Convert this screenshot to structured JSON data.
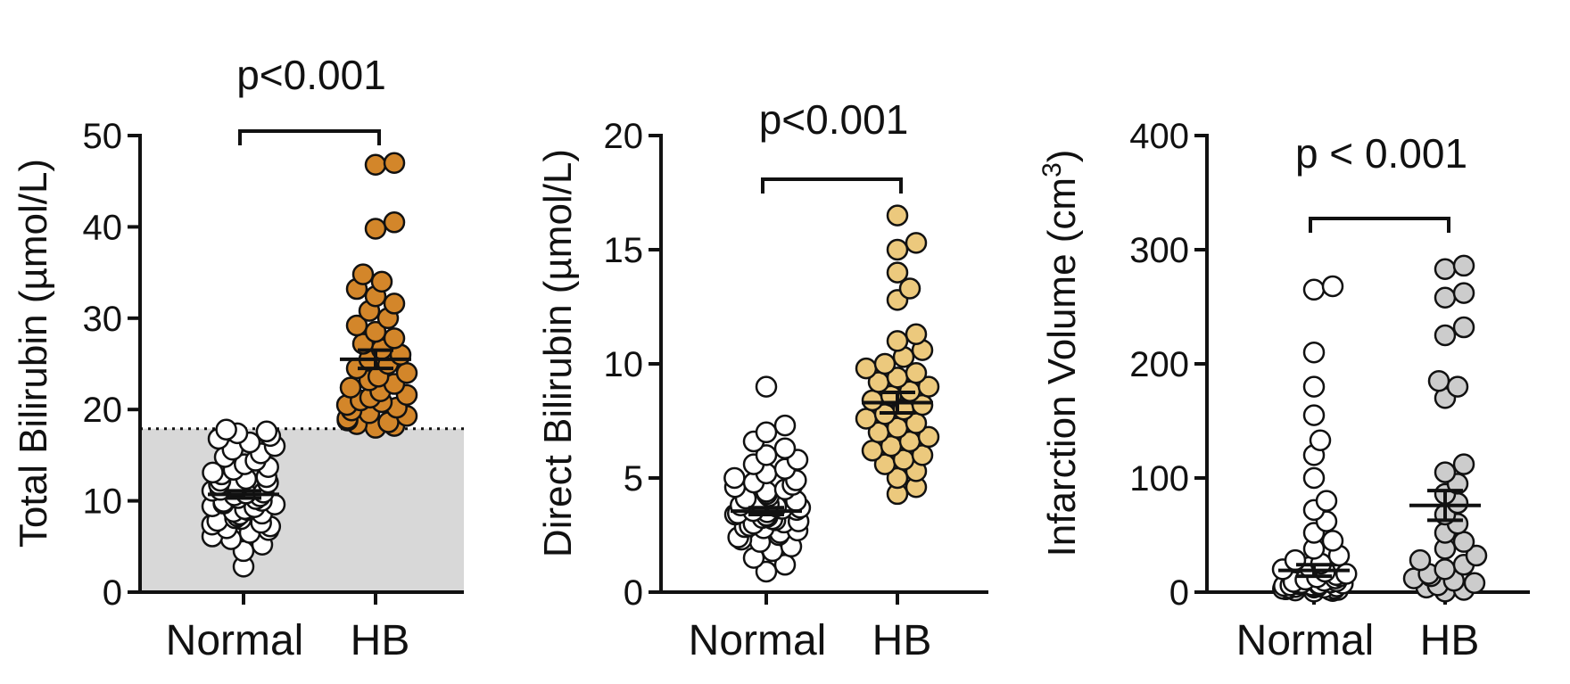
{
  "chart_data": [
    {
      "type": "scatter",
      "ylabel": "Total Bilirubin (µmol/L)",
      "ylim": [
        0,
        50
      ],
      "yticks": [
        "0",
        "10",
        "20",
        "30",
        "40",
        "50"
      ],
      "categories": [
        "Normal",
        "HB"
      ],
      "pvalue": "p<0.001",
      "reference_line": 17.9,
      "reference_region": [
        0,
        17.9
      ],
      "colors": {
        "Normal": "#ffffff",
        "HB": "#d3862a"
      },
      "groups": [
        {
          "name": "Normal",
          "mean": 10.7,
          "sem": 0.4,
          "values": [
            2.8,
            4.5,
            5.2,
            5.8,
            6.1,
            6.5,
            6.8,
            7.0,
            7.2,
            7.4,
            7.6,
            7.8,
            8.0,
            8.1,
            8.3,
            8.5,
            8.6,
            8.8,
            9.0,
            9.1,
            9.3,
            9.4,
            9.6,
            9.7,
            9.9,
            10.0,
            10.2,
            10.3,
            10.5,
            10.6,
            10.8,
            10.9,
            11.1,
            11.2,
            11.4,
            11.6,
            11.8,
            12.0,
            12.2,
            12.4,
            12.6,
            12.9,
            13.1,
            13.4,
            13.7,
            14.0,
            14.4,
            14.8,
            15.2,
            15.6,
            16.0,
            16.4,
            16.8,
            17.1,
            17.4,
            17.6,
            17.8
          ]
        },
        {
          "name": "HB",
          "mean": 25.5,
          "sem": 1.0,
          "values": [
            18.0,
            18.2,
            18.4,
            18.6,
            18.8,
            19.0,
            19.3,
            19.6,
            19.9,
            20.2,
            20.5,
            20.8,
            21.0,
            21.3,
            21.6,
            22.0,
            22.4,
            22.8,
            23.2,
            23.6,
            24.0,
            24.5,
            25.0,
            25.5,
            26.0,
            26.6,
            27.2,
            27.8,
            28.5,
            29.2,
            30.0,
            30.8,
            31.6,
            32.4,
            33.2,
            34.0,
            34.8,
            39.8,
            40.5,
            46.8,
            47.0
          ]
        }
      ]
    },
    {
      "type": "scatter",
      "ylabel": "Direct Bilirubin (µmol/L)",
      "ylim": [
        0,
        20
      ],
      "yticks": [
        "0",
        "5",
        "10",
        "15",
        "20"
      ],
      "categories": [
        "Normal",
        "HB"
      ],
      "pvalue": "p<0.001",
      "colors": {
        "Normal": "#ffffff",
        "HB": "#ecc97d"
      },
      "groups": [
        {
          "name": "Normal",
          "mean": 3.55,
          "sem": 0.15,
          "values": [
            0.9,
            1.2,
            1.5,
            1.8,
            2.0,
            2.2,
            2.3,
            2.4,
            2.5,
            2.6,
            2.7,
            2.8,
            2.85,
            2.9,
            3.0,
            3.05,
            3.1,
            3.15,
            3.2,
            3.25,
            3.3,
            3.35,
            3.4,
            3.45,
            3.5,
            3.55,
            3.6,
            3.65,
            3.7,
            3.75,
            3.8,
            3.85,
            3.9,
            4.0,
            4.1,
            4.2,
            4.3,
            4.4,
            4.5,
            4.6,
            4.7,
            4.8,
            4.9,
            5.0,
            5.2,
            5.4,
            5.6,
            5.8,
            6.0,
            6.3,
            6.6,
            7.0,
            7.3,
            9.0
          ]
        },
        {
          "name": "HB",
          "mean": 8.3,
          "sem": 0.45,
          "values": [
            4.3,
            4.6,
            5.0,
            5.3,
            5.6,
            5.8,
            6.0,
            6.2,
            6.4,
            6.6,
            6.8,
            7.0,
            7.2,
            7.4,
            7.6,
            7.8,
            8.0,
            8.2,
            8.4,
            8.6,
            8.8,
            9.0,
            9.2,
            9.4,
            9.6,
            9.8,
            10.0,
            10.3,
            10.6,
            11.0,
            11.3,
            12.8,
            13.3,
            14.0,
            15.0,
            15.3,
            16.5
          ]
        }
      ]
    },
    {
      "type": "scatter",
      "ylabel": "Infarction Volume (cm",
      "ylabel_sup": "3",
      "ylabel_end": ")",
      "ylim": [
        0,
        400
      ],
      "yticks": [
        "0",
        "100",
        "200",
        "300",
        "400"
      ],
      "categories": [
        "Normal",
        "HB"
      ],
      "pvalue": "p < 0.001",
      "colors": {
        "Normal": "#ffffff",
        "HB": "#cccccc"
      },
      "groups": [
        {
          "name": "Normal",
          "mean": 19,
          "sem": 5,
          "values": [
            0.5,
            1,
            1.5,
            2,
            2,
            2.5,
            3,
            3,
            3.5,
            4,
            4,
            4.5,
            5,
            5,
            5.5,
            6,
            6,
            6.5,
            7,
            7,
            7.5,
            8,
            8.5,
            9,
            9.5,
            10,
            11,
            12,
            13,
            14,
            15,
            16,
            18,
            20,
            22,
            25,
            28,
            32,
            38,
            45,
            52,
            62,
            72,
            80,
            100,
            120,
            133,
            155,
            180,
            210,
            265,
            268
          ]
        },
        {
          "name": "HB",
          "mean": 76,
          "sem": 13,
          "values": [
            0.5,
            2,
            4,
            6,
            8,
            10,
            12,
            14,
            16,
            20,
            24,
            28,
            32,
            38,
            44,
            52,
            60,
            68,
            78,
            86,
            95,
            105,
            112,
            170,
            180,
            185,
            225,
            232,
            258,
            262,
            283,
            286
          ]
        }
      ]
    }
  ]
}
